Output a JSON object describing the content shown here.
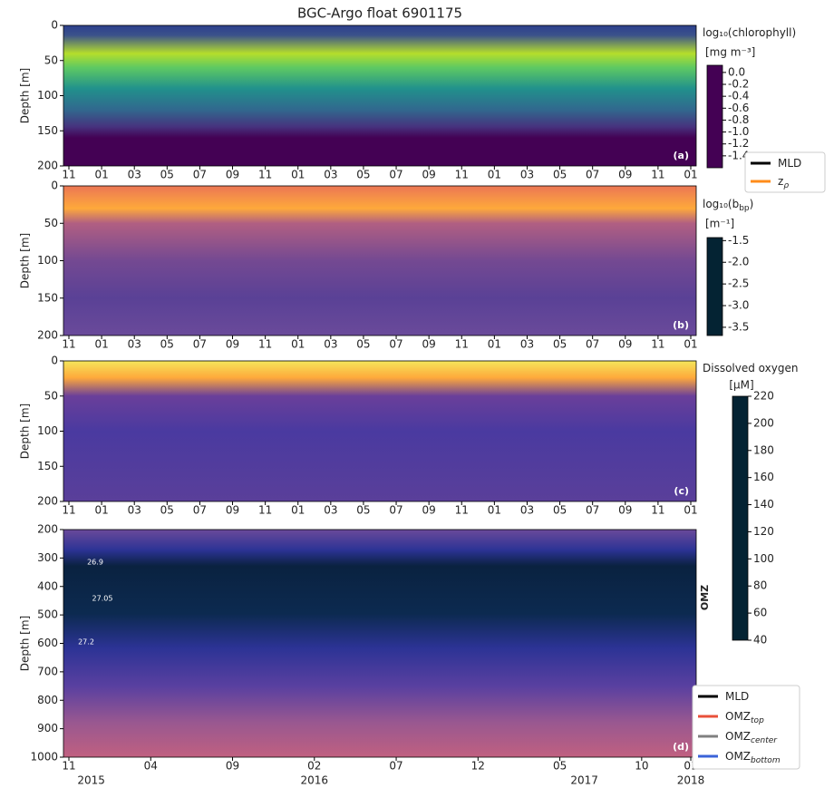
{
  "chart_data": [
    {
      "type": "heatmap",
      "title": "BGC-Argo float 6901175",
      "ylabel": "Depth [m]",
      "panel_label": "(a)",
      "ylim": [
        200,
        0
      ],
      "yticks": [
        0,
        50,
        100,
        150,
        200
      ],
      "categories": [
        "11",
        "01",
        "03",
        "05",
        "07",
        "09",
        "11",
        "01",
        "03",
        "05",
        "07",
        "09",
        "11",
        "01",
        "03",
        "05",
        "07",
        "09",
        "11",
        "01"
      ],
      "colorbar": {
        "label": "log₁₀(chlorophyll)",
        "units": "[mg m⁻³]",
        "lim": [
          -1.6,
          0.12
        ],
        "ticks": [
          {
            "value": 0,
            "label": "0.0"
          },
          -0.2,
          -0.4,
          -0.6,
          -0.8,
          {
            "value": -1,
            "label": "-1.0"
          },
          -1.2,
          -1.4
        ],
        "colormap": [
          "#440154",
          "#3b528b",
          "#21918c",
          "#5ec962",
          "#fde725"
        ]
      },
      "legend": [
        {
          "label": "MLD",
          "color": "#000000"
        },
        {
          "label": "z",
          "subscript": "ρ",
          "color": "#ff8c1a"
        }
      ]
    },
    {
      "type": "heatmap",
      "ylabel": "Depth [m]",
      "panel_label": "(b)",
      "ylim": [
        200,
        0
      ],
      "yticks": [
        0,
        50,
        100,
        150,
        200
      ],
      "categories": [
        "11",
        "01",
        "03",
        "05",
        "07",
        "09",
        "11",
        "01",
        "03",
        "05",
        "07",
        "09",
        "11",
        "01",
        "03",
        "05",
        "07",
        "09",
        "11",
        "01"
      ],
      "colorbar": {
        "label": "log₁₀(b",
        "label_subscript": "bp",
        "label_end": ")",
        "units": "[m⁻¹]",
        "lim": [
          -3.69,
          -1.43
        ],
        "ticks": [
          -1.5,
          {
            "value": -2,
            "label": "-2.0"
          },
          -2.5,
          {
            "value": -3,
            "label": "-3.0"
          },
          -3.5
        ],
        "colormap": [
          "#042333",
          "#2c3395",
          "#744992",
          "#b15f82",
          "#eb7655",
          "#fea93b",
          "#f4e65b"
        ]
      }
    },
    {
      "type": "heatmap",
      "ylabel": "Depth [m]",
      "panel_label": "(c)",
      "ylim": [
        200,
        0
      ],
      "yticks": [
        0,
        50,
        100,
        150,
        200
      ],
      "categories": [
        "11",
        "01",
        "03",
        "05",
        "07",
        "09",
        "11",
        "01",
        "03",
        "05",
        "07",
        "09",
        "11",
        "01",
        "03",
        "05",
        "07",
        "09",
        "11",
        "01"
      ],
      "colorbar": {
        "label": "Dissolved oxygen",
        "units": "[µM]",
        "lim": [
          40,
          220
        ],
        "ticks": [
          40,
          60,
          80,
          100,
          120,
          140,
          160,
          180,
          200,
          220
        ],
        "colormap": [
          "#042333",
          "#2c3395",
          "#744992",
          "#b15f82",
          "#eb7655",
          "#fea93b",
          "#e8fa5b"
        ]
      }
    },
    {
      "type": "heatmap",
      "ylabel": "Depth [m]",
      "panel_label": "(d)",
      "side_label": "OMZ",
      "ylim": [
        1000,
        200
      ],
      "yticks": [
        200,
        300,
        400,
        500,
        600,
        700,
        800,
        900,
        1000
      ],
      "categories": [
        "11",
        "04",
        "09",
        "02",
        "07",
        "12",
        "05",
        "10",
        "01"
      ],
      "years": [
        "2015",
        "2016",
        "2017",
        "2018"
      ],
      "annotations": [
        "26.9",
        "27.05",
        "27.2"
      ],
      "legend": [
        {
          "label": "MLD",
          "color": "#000000"
        },
        {
          "label": "OMZ",
          "subscript": "top",
          "color": "#e8503a"
        },
        {
          "label": "OMZ",
          "subscript": "center",
          "color": "#808080"
        },
        {
          "label": "OMZ",
          "subscript": "bottom",
          "color": "#3a63d8"
        }
      ]
    }
  ]
}
